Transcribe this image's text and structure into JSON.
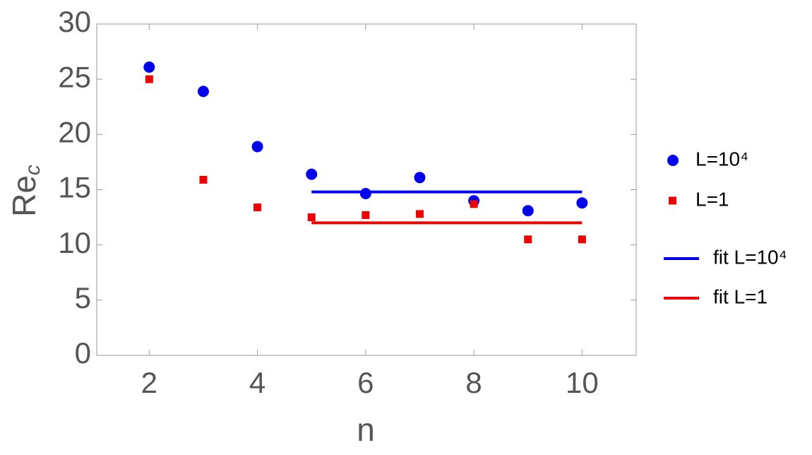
{
  "chart_data": {
    "type": "scatter",
    "xlabel": "n",
    "ylabel": "Re",
    "ylabel_sub": "c",
    "xlim": [
      1.03,
      11
    ],
    "ylim": [
      0,
      30
    ],
    "xticks": [
      2,
      4,
      6,
      8,
      10
    ],
    "yticks": [
      0,
      5,
      10,
      15,
      20,
      25,
      30
    ],
    "series": [
      {
        "name": "L=10⁴",
        "color": "#0000ee",
        "mode": "marker",
        "marker": "circle",
        "x": [
          2,
          3,
          4,
          5,
          6,
          7,
          8,
          9,
          10
        ],
        "values": [
          26.1,
          23.9,
          18.9,
          16.4,
          14.65,
          16.1,
          14.0,
          13.1,
          13.8
        ]
      },
      {
        "name": "L=1",
        "color": "#ee0000",
        "mode": "marker",
        "marker": "square",
        "x": [
          2,
          3,
          4,
          5,
          6,
          7,
          8,
          9,
          10
        ],
        "values": [
          25.0,
          15.9,
          13.4,
          12.5,
          12.7,
          12.8,
          13.7,
          10.5,
          10.5
        ]
      },
      {
        "name": "fit L=10⁴",
        "color": "#0000ee",
        "mode": "line",
        "x": [
          5,
          10
        ],
        "values": [
          14.8,
          14.8
        ]
      },
      {
        "name": "fit L=1",
        "color": "#ee0000",
        "mode": "line",
        "x": [
          5,
          10
        ],
        "values": [
          12.0,
          12.0
        ]
      }
    ]
  }
}
